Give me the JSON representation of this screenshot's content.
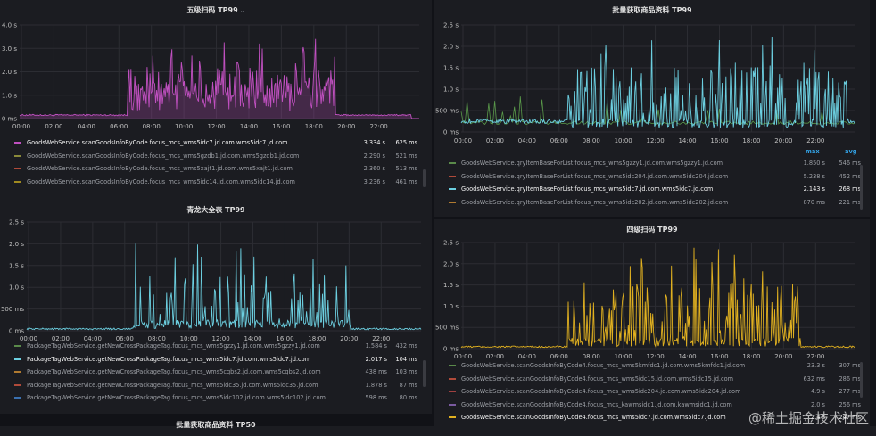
{
  "panels": [
    {
      "id": "p1",
      "title": "五级扫码 TP99",
      "has_caret": true,
      "color": "#c050c0",
      "y_ticks": [
        "4.0 s",
        "3.0 s",
        "2.0 s",
        "1.0 s",
        "0 ms"
      ],
      "x_ticks": [
        "00:00",
        "02:00",
        "04:00",
        "06:00",
        "08:00",
        "10:00",
        "12:00",
        "14:00",
        "16:00",
        "18:00",
        "20:00",
        "22:00"
      ],
      "legend_headers": null,
      "legend": [
        {
          "name": "GoodsWebService.scanGoodsInfoByCode.focus_mcs_wms5idc7.jd.com.wms5idc7.jd.com",
          "max": "3.334 s",
          "avg": "625 ms",
          "color": "#c050c0",
          "highlight": true
        },
        {
          "name": "GoodsWebService.scanGoodsInfoByCode.focus_mcs_wms5gzdb1.jd.com.wms5gzdb1.jd.com",
          "max": "2.290 s",
          "avg": "521 ms",
          "color": "#8a8a3a",
          "highlight": false
        },
        {
          "name": "GoodsWebService.scanGoodsInfoByCode.focus_mcs_wms5xajt1.jd.com.wms5xajt1.jd.com",
          "max": "2.360 s",
          "avg": "513 ms",
          "color": "#b04a3a",
          "highlight": false
        },
        {
          "name": "GoodsWebService.scanGoodsInfoByCode.focus_mcs_wms5idc14.jd.com.wms5idc14.jd.com",
          "max": "3.236 s",
          "avg": "461 ms",
          "color": "#a08a20",
          "highlight": false
        }
      ]
    },
    {
      "id": "p2",
      "title": "批量获取商品资料 TP99",
      "has_caret": false,
      "color": "#6ccfe0",
      "y_ticks": [
        "2.5 s",
        "2.0 s",
        "1.5 s",
        "1.0 s",
        "500 ms",
        "0 ms"
      ],
      "x_ticks": [
        "00:00",
        "02:00",
        "04:00",
        "06:00",
        "08:00",
        "10:00",
        "12:00",
        "14:00",
        "16:00",
        "18:00",
        "20:00",
        "22:00"
      ],
      "legend_headers": {
        "max": "max",
        "avg": "avg"
      },
      "legend": [
        {
          "name": "GoodsWebService.qryItemBaseForList.focus_mcs_wms5gzzy1.jd.com.wms5gzzy1.jd.com",
          "max": "1.850 s",
          "avg": "546 ms",
          "color": "#5a8a4a",
          "highlight": false
        },
        {
          "name": "GoodsWebService.qryItemBaseForList.focus_mcs_wms5idc204.jd.com.wms5idc204.jd.com",
          "max": "5.238 s",
          "avg": "452 ms",
          "color": "#b04a3a",
          "highlight": false
        },
        {
          "name": "GoodsWebService.qryItemBaseForList.focus_mcs_wms5idc7.jd.com.wms5idc7.jd.com",
          "max": "2.143 s",
          "avg": "268 ms",
          "color": "#6ccfe0",
          "highlight": true
        },
        {
          "name": "GoodsWebService.qryItemBaseForList.focus_mcs_wms5idc202.jd.com.wms5idc202.jd.com",
          "max": "870 ms",
          "avg": "221 ms",
          "color": "#b07a30",
          "highlight": false
        }
      ]
    },
    {
      "id": "p3",
      "title": "青龙大全表 TP99",
      "has_caret": false,
      "color": "#6ccfe0",
      "y_ticks": [
        "2.5 s",
        "2.0 s",
        "1.5 s",
        "1.0 s",
        "500 ms",
        "0 ms"
      ],
      "x_ticks": [
        "00:00",
        "02:00",
        "04:00",
        "06:00",
        "08:00",
        "10:00",
        "12:00",
        "14:00",
        "16:00",
        "18:00",
        "20:00",
        "22:00"
      ],
      "legend_headers": null,
      "legend": [
        {
          "name": "PackageTagWebService.getNewCrossPackageTag.focus_mcs_wms5gzzy1.jd.com.wms5gzzy1.jd.com",
          "max": "1.584 s",
          "avg": "432 ms",
          "color": "#5a8a4a",
          "highlight": false
        },
        {
          "name": "PackageTagWebService.getNewCrossPackageTag.focus_mcs_wms5idc7.jd.com.wms5idc7.jd.com",
          "max": "2.017 s",
          "avg": "104 ms",
          "color": "#6ccfe0",
          "highlight": true
        },
        {
          "name": "PackageTagWebService.getNewCrossPackageTag.focus_mcs_wms5cqbs2.jd.com.wms5cqbs2.jd.com",
          "max": "438 ms",
          "avg": "103 ms",
          "color": "#b07a30",
          "highlight": false
        },
        {
          "name": "PackageTagWebService.getNewCrossPackageTag.focus_mcs_wms5idc35.jd.com.wms5idc35.jd.com",
          "max": "1.878 s",
          "avg": "87 ms",
          "color": "#b04a3a",
          "highlight": false
        },
        {
          "name": "PackageTagWebService.getNewCrossPackageTag.focus_mcs_wms5idc102.jd.com.wms5idc102.jd.com",
          "max": "598 ms",
          "avg": "80 ms",
          "color": "#3a70b0",
          "highlight": false
        }
      ]
    },
    {
      "id": "p4",
      "title": "四级扫码 TP99",
      "has_caret": false,
      "color": "#e0b020",
      "y_ticks": [
        "2.5 s",
        "2.0 s",
        "1.5 s",
        "1.0 s",
        "500 ms",
        "0 ms"
      ],
      "x_ticks": [
        "00:00",
        "02:00",
        "04:00",
        "06:00",
        "08:00",
        "10:00",
        "12:00",
        "14:00",
        "16:00",
        "18:00",
        "20:00",
        "22:00"
      ],
      "legend_headers": null,
      "legend": [
        {
          "name": "GoodsWebService.scanGoodsInfoByCode4.focus_mcs_wms5kmfdc1.jd.com.wms5kmfdc1.jd.com",
          "max": "23.3 s",
          "avg": "307 ms",
          "color": "#5a8a4a",
          "highlight": false
        },
        {
          "name": "GoodsWebService.scanGoodsInfoByCode4.focus_mcs_wms5idc15.jd.com.wms5idc15.jd.com",
          "max": "632 ms",
          "avg": "286 ms",
          "color": "#b04a3a",
          "highlight": false
        },
        {
          "name": "GoodsWebService.scanGoodsInfoByCode4.focus_mcs_wms5idc204.jd.com.wms5idc204.jd.com",
          "max": "4.9 s",
          "avg": "277 ms",
          "color": "#a04040",
          "highlight": false
        },
        {
          "name": "GoodsWebService.scanGoodsInfoByCode4.focus_mcs_kawmsidc1.jd.com.kawmsidc1.jd.com",
          "max": "2.0 s",
          "avg": "256 ms",
          "color": "#7a5aa0",
          "highlight": false
        },
        {
          "name": "GoodsWebService.scanGoodsInfoByCode4.focus_mcs_wms5idc7.jd.com.wms5idc7.jd.com",
          "max": "2.4 s",
          "avg": "247 ms",
          "color": "#e0b020",
          "highlight": true
        }
      ]
    }
  ],
  "bottom_panel_title": "批量获取商品资料 TP50",
  "watermark": "@稀土掘金技术社区"
}
